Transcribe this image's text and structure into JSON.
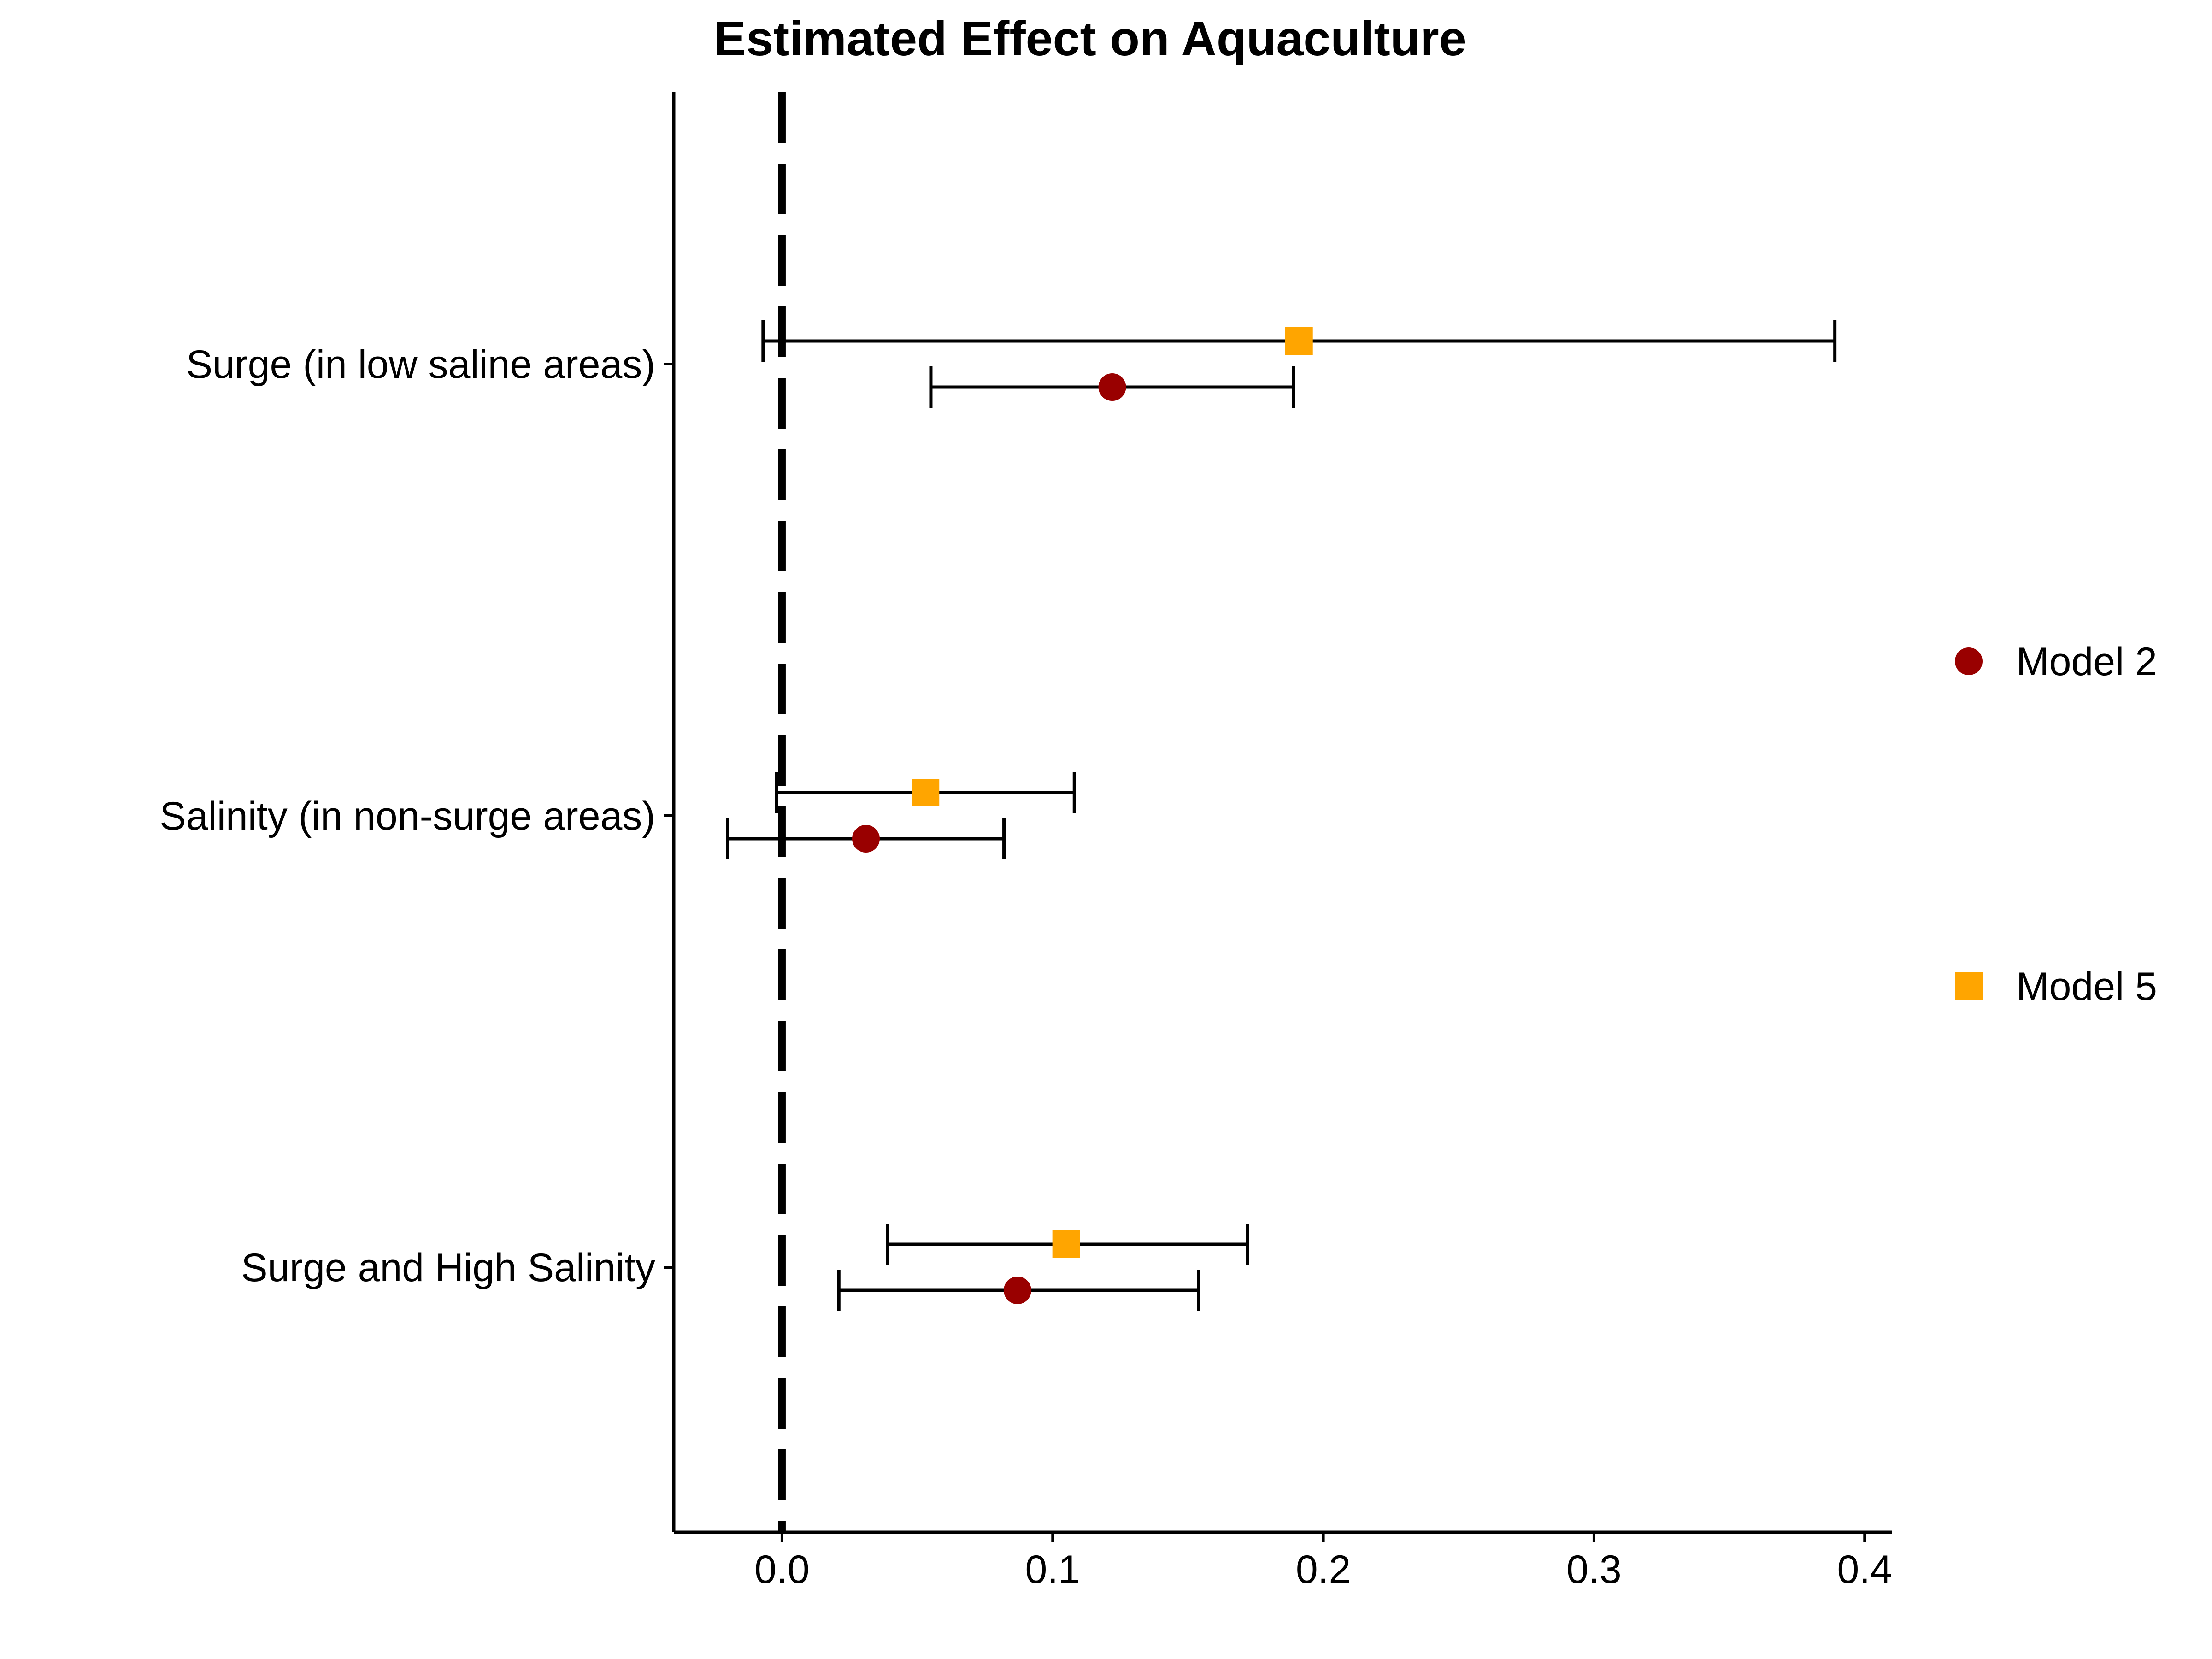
{
  "chart_data": {
    "type": "scatter",
    "title": "Estimated Effect on Aquaculture",
    "xlabel": "",
    "ylabel": "",
    "xlim": [
      -0.04,
      0.41
    ],
    "x_ticks": [
      "0.0",
      "0.1",
      "0.2",
      "0.3",
      "0.4"
    ],
    "reference_line": {
      "x": 0,
      "style": "dashed",
      "color": "#000000"
    },
    "grid": false,
    "legend_position": "right",
    "categories": [
      "Surge (in low saline areas)",
      "Salinity (in non-surge areas)",
      "Surge and High Salinity"
    ],
    "series": [
      {
        "name": "Model 2",
        "marker": "circle",
        "color": "#990000",
        "estimates": [
          0.122,
          0.031,
          0.087
        ],
        "ci_low": [
          0.055,
          -0.02,
          0.021
        ],
        "ci_high": [
          0.189,
          0.082,
          0.154
        ]
      },
      {
        "name": "Model 5",
        "marker": "square",
        "color": "#FFA500",
        "estimates": [
          0.191,
          0.053,
          0.105
        ],
        "ci_low": [
          -0.007,
          -0.002,
          0.039
        ],
        "ci_high": [
          0.389,
          0.108,
          0.172
        ]
      }
    ]
  }
}
